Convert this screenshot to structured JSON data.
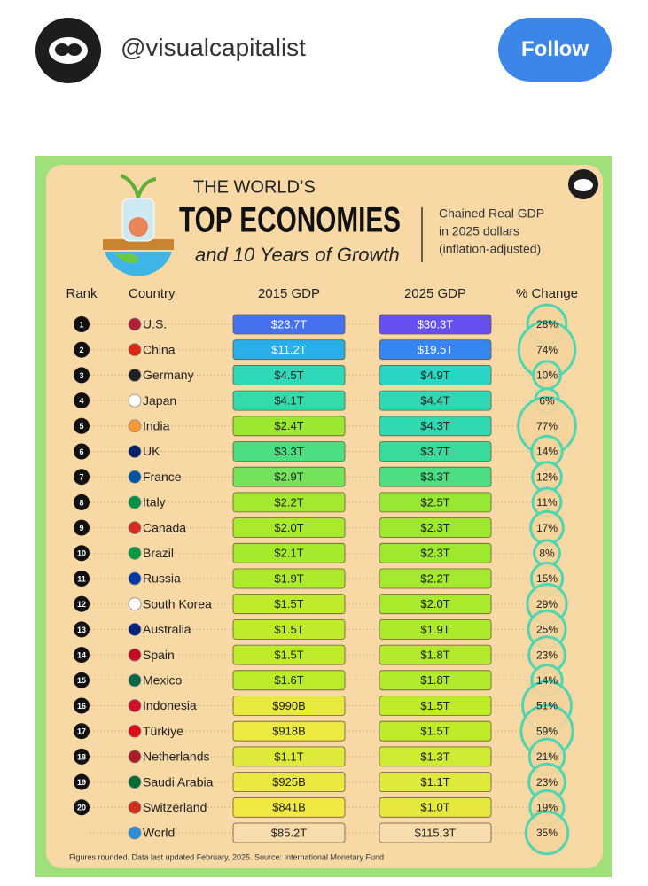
{
  "header": {
    "handle": "@visualcapitalist",
    "follow": "Follow"
  },
  "infographic": {
    "title_line1": "THE WORLD’S",
    "title_line2": "TOP ECONOMIES",
    "title_line3": "and 10 Years of Growth",
    "subtitle": [
      "Chained Real GDP",
      "in 2025 dollars",
      "(inflation-adjusted)"
    ],
    "columns": [
      "Rank",
      "Country",
      "2015 GDP",
      "2025 GDP",
      "% Change"
    ],
    "rows": [
      {
        "rank": "1",
        "country": "U.S.",
        "gdp2015": "$23.7T",
        "gdp2025": "$30.3T",
        "change": "28%"
      },
      {
        "rank": "2",
        "country": "China",
        "gdp2015": "$11.2T",
        "gdp2025": "$19.5T",
        "change": "74%"
      },
      {
        "rank": "3",
        "country": "Germany",
        "gdp2015": "$4.5T",
        "gdp2025": "$4.9T",
        "change": "10%"
      },
      {
        "rank": "4",
        "country": "Japan",
        "gdp2015": "$4.1T",
        "gdp2025": "$4.4T",
        "change": "6%"
      },
      {
        "rank": "5",
        "country": "India",
        "gdp2015": "$2.4T",
        "gdp2025": "$4.3T",
        "change": "77%"
      },
      {
        "rank": "6",
        "country": "UK",
        "gdp2015": "$3.3T",
        "gdp2025": "$3.7T",
        "change": "14%"
      },
      {
        "rank": "7",
        "country": "France",
        "gdp2015": "$2.9T",
        "gdp2025": "$3.3T",
        "change": "12%"
      },
      {
        "rank": "8",
        "country": "Italy",
        "gdp2015": "$2.2T",
        "gdp2025": "$2.5T",
        "change": "11%"
      },
      {
        "rank": "9",
        "country": "Canada",
        "gdp2015": "$2.0T",
        "gdp2025": "$2.3T",
        "change": "17%"
      },
      {
        "rank": "10",
        "country": "Brazil",
        "gdp2015": "$2.1T",
        "gdp2025": "$2.3T",
        "change": "8%"
      },
      {
        "rank": "11",
        "country": "Russia",
        "gdp2015": "$1.9T",
        "gdp2025": "$2.2T",
        "change": "15%"
      },
      {
        "rank": "12",
        "country": "South Korea",
        "gdp2015": "$1.5T",
        "gdp2025": "$2.0T",
        "change": "29%"
      },
      {
        "rank": "13",
        "country": "Australia",
        "gdp2015": "$1.5T",
        "gdp2025": "$1.9T",
        "change": "25%"
      },
      {
        "rank": "14",
        "country": "Spain",
        "gdp2015": "$1.5T",
        "gdp2025": "$1.8T",
        "change": "23%"
      },
      {
        "rank": "15",
        "country": "Mexico",
        "gdp2015": "$1.6T",
        "gdp2025": "$1.8T",
        "change": "14%"
      },
      {
        "rank": "16",
        "country": "Indonesia",
        "gdp2015": "$990B",
        "gdp2025": "$1.5T",
        "change": "51%"
      },
      {
        "rank": "17",
        "country": "Türkiye",
        "gdp2015": "$918B",
        "gdp2025": "$1.5T",
        "change": "59%"
      },
      {
        "rank": "18",
        "country": "Netherlands",
        "gdp2015": "$1.1T",
        "gdp2025": "$1.3T",
        "change": "21%"
      },
      {
        "rank": "19",
        "country": "Saudi Arabia",
        "gdp2015": "$925B",
        "gdp2025": "$1.1T",
        "change": "23%"
      },
      {
        "rank": "20",
        "country": "Switzerland",
        "gdp2015": "$841B",
        "gdp2025": "$1.0T",
        "change": "19%"
      },
      {
        "country": "World",
        "gdp2015": "$85.2T",
        "gdp2025": "$115.3T",
        "change": "35%"
      }
    ],
    "footnote": "Figures rounded. Data last updated February, 2025. Source: International Monetary Fund"
  }
}
